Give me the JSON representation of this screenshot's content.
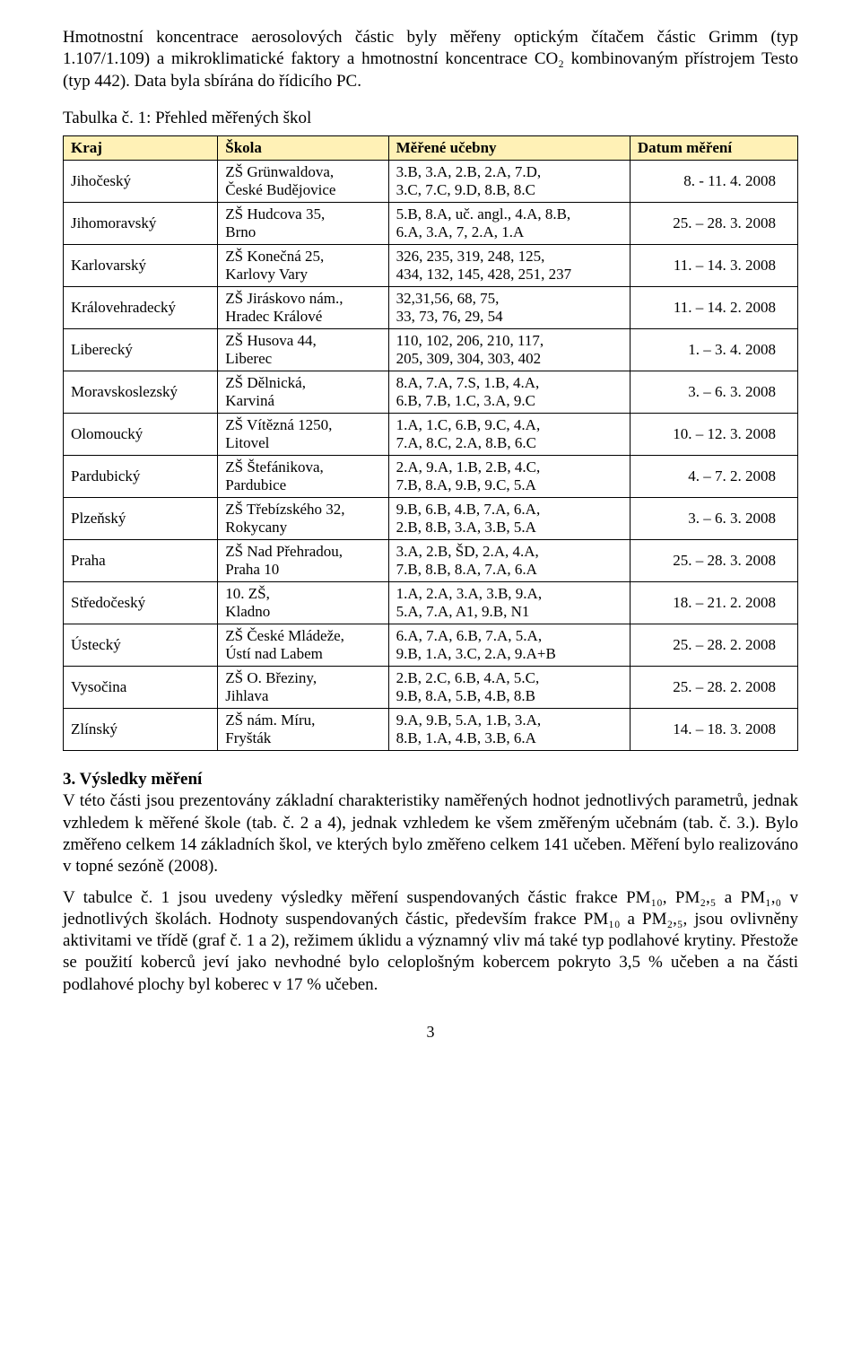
{
  "intro": {
    "p1": "Hmotnostní koncentrace aerosolových částic byly měřeny optickým čítačem částic Grimm (typ 1.107/1.109) a mikroklimatické faktory a hmotnostní koncentrace CO₂ kombinovaným přístrojem Testo (typ 442). Data byla sbírána do řídicího PC.",
    "caption": "Tabulka č. 1: Přehled měřených škol"
  },
  "table": {
    "header_bg": "#fff1b6",
    "headers": [
      "Kraj",
      "Škola",
      "Měřené učebny",
      "Datum měření"
    ],
    "rows": [
      {
        "kraj": "Jihočeský",
        "skola_l1": "ZŠ Grünwaldova,",
        "skola_l2": "České Budějovice",
        "uc_l1": "3.B, 3.A, 2.B, 2.A, 7.D,",
        "uc_l2": "3.C, 7.C, 9.D, 8.B, 8.C",
        "datum": "8. - 11. 4. 2008"
      },
      {
        "kraj": "Jihomoravský",
        "skola_l1": "ZŠ Hudcova 35,",
        "skola_l2": "Brno",
        "uc_l1": "5.B, 8.A, uč. angl., 4.A, 8.B,",
        "uc_l2": "6.A, 3.A, 7, 2.A, 1.A",
        "datum": "25. – 28. 3. 2008"
      },
      {
        "kraj": "Karlovarský",
        "skola_l1": "ZŠ Konečná 25,",
        "skola_l2": "Karlovy Vary",
        "uc_l1": "326, 235, 319, 248, 125,",
        "uc_l2": "434, 132, 145, 428, 251, 237",
        "datum": "11. – 14. 3. 2008"
      },
      {
        "kraj": "Královehradecký",
        "skola_l1": "ZŠ Jiráskovo nám.,",
        "skola_l2": "Hradec Králové",
        "uc_l1": "32,31,56, 68, 75,",
        "uc_l2": "33, 73, 76, 29, 54",
        "datum": "11. – 14. 2. 2008"
      },
      {
        "kraj": "Liberecký",
        "skola_l1": "ZŠ Husova 44,",
        "skola_l2": " Liberec",
        "uc_l1": "110, 102, 206, 210, 117,",
        "uc_l2": "205, 309, 304, 303, 402",
        "datum": "1. – 3. 4. 2008"
      },
      {
        "kraj": "Moravskoslezský",
        "skola_l1": "ZŠ Dělnická,",
        "skola_l2": "Karviná",
        "uc_l1": "8.A, 7.A, 7.S, 1.B, 4.A,",
        "uc_l2": "6.B, 7.B, 1.C, 3.A, 9.C",
        "datum": "3. – 6. 3. 2008"
      },
      {
        "kraj": "Olomoucký",
        "skola_l1": "ZŠ Vítězná 1250,",
        "skola_l2": "Litovel",
        "uc_l1": "1.A, 1.C, 6.B, 9.C, 4.A,",
        "uc_l2": "7.A, 8.C, 2.A, 8.B, 6.C",
        "datum": "10. – 12. 3. 2008"
      },
      {
        "kraj": "Pardubický",
        "skola_l1": "ZŠ Štefánikova,",
        "skola_l2": "Pardubice",
        "uc_l1": "2.A, 9.A, 1.B, 2.B, 4.C,",
        "uc_l2": "7.B, 8.A, 9.B, 9.C, 5.A",
        "datum": "4. – 7. 2. 2008"
      },
      {
        "kraj": "Plzeňský",
        "skola_l1": "ZŠ Třebízského 32,",
        "skola_l2": "Rokycany",
        "uc_l1": "9.B, 6.B, 4.B, 7.A, 6.A,",
        "uc_l2": "2.B, 8.B, 3.A, 3.B, 5.A",
        "datum": "3. – 6. 3. 2008"
      },
      {
        "kraj": "Praha",
        "skola_l1": "ZŠ Nad Přehradou,",
        "skola_l2": "Praha 10",
        "uc_l1": "3.A, 2.B, ŠD, 2.A, 4.A,",
        "uc_l2": "7.B, 8.B, 8.A, 7.A, 6.A",
        "datum": "25. – 28. 3. 2008"
      },
      {
        "kraj": "Středočeský",
        "skola_l1": "10. ZŠ,",
        "skola_l2": "Kladno",
        "uc_l1": "1.A, 2.A, 3.A, 3.B, 9.A,",
        "uc_l2": "5.A, 7.A, A1, 9.B, N1",
        "datum": "18. – 21. 2. 2008"
      },
      {
        "kraj": "Ústecký",
        "skola_l1": "ZŠ České Mládeže,",
        "skola_l2": "Ústí nad Labem",
        "uc_l1": "6.A, 7.A, 6.B, 7.A, 5.A,",
        "uc_l2": "9.B, 1.A, 3.C, 2.A, 9.A+B",
        "datum": "25. – 28. 2. 2008"
      },
      {
        "kraj": "Vysočina",
        "skola_l1": "ZŠ O. Březiny,",
        "skola_l2": "Jihlava",
        "uc_l1": "2.B, 2.C, 6.B, 4.A, 5.C,",
        "uc_l2": "9.B, 8.A, 5.B, 4.B, 8.B",
        "datum": "25. – 28. 2. 2008"
      },
      {
        "kraj": "Zlínský",
        "skola_l1": "ZŠ nám. Míru,",
        "skola_l2": "Fryšták",
        "uc_l1": "9.A, 9.B, 5.A, 1.B, 3.A,",
        "uc_l2": "8.B, 1.A, 4.B, 3.B, 6.A",
        "datum": "14. – 18. 3. 2008"
      }
    ]
  },
  "results": {
    "title": "3. Výsledky měření",
    "p1": "V této části jsou prezentovány základní charakteristiky naměřených hodnot jednotlivých parametrů, jednak vzhledem k měřené škole (tab. č. 2 a 4), jednak vzhledem ke všem změřeným učebnám (tab. č. 3.). Bylo změřeno celkem 14 základních škol, ve kterých bylo změřeno celkem 141 učeben. Měření bylo realizováno v topné sezóně (2008).",
    "p2": "V tabulce č. 1 jsou uvedeny výsledky měření suspendovaných částic frakce PM₁₀, PM₂,₅ a PM₁,₀ v jednotlivých školách. Hodnoty suspendovaných částic, především frakce PM₁₀ a PM₂,₅, jsou ovlivněny aktivitami ve třídě (graf č. 1 a 2), režimem úklidu a významný vliv má také typ podlahové krytiny. Přestože se použití koberců jeví jako nevhodné bylo celoplošným kobercem pokryto 3,5 % učeben a na části podlahové plochy byl koberec v 17 % učeben."
  },
  "page_number": "3"
}
